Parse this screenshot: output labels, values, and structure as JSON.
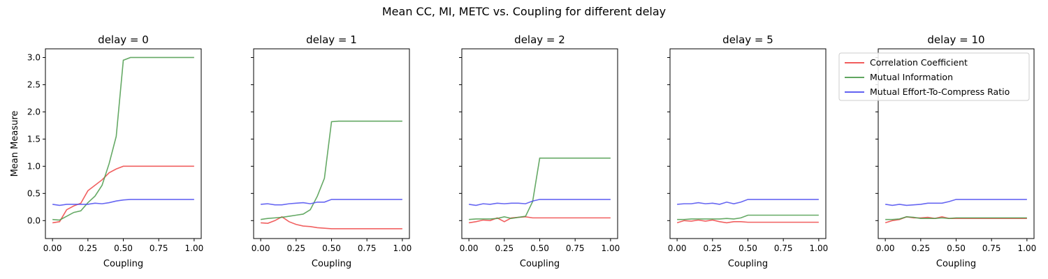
{
  "figure": {
    "title": "Mean CC, MI, METC vs. Coupling for different delay"
  },
  "legend": {
    "placement": "upper-right (last panel)",
    "entries": [
      {
        "label": "Correlation Coefficient",
        "color": "#ef4444"
      },
      {
        "label": "Mutual Information",
        "color": "#4a9a4a"
      },
      {
        "label": "Mutual Effort-To-Compress Ratio",
        "color": "#4b4bf0"
      }
    ]
  },
  "chart_data": [
    {
      "type": "line",
      "title": "delay = 0",
      "xlabel": "Coupling",
      "ylabel": "Mean Measure",
      "xlim": [
        -0.05,
        1.05
      ],
      "ylim": [
        -0.33,
        3.16
      ],
      "x_ticks": [
        "0.00",
        "0.25",
        "0.50",
        "0.75",
        "1.00"
      ],
      "y_ticks": [
        "0.0",
        "0.5",
        "1.0",
        "1.5",
        "2.0",
        "2.5",
        "3.0"
      ],
      "x": [
        0.0,
        0.05,
        0.1,
        0.15,
        0.2,
        0.25,
        0.3,
        0.35,
        0.4,
        0.45,
        0.5,
        0.55,
        0.6,
        0.65,
        0.7,
        0.75,
        0.8,
        0.85,
        0.9,
        0.95,
        1.0
      ],
      "series": [
        {
          "name": "Correlation Coefficient",
          "values": [
            -0.04,
            -0.02,
            0.2,
            0.27,
            0.32,
            0.55,
            0.65,
            0.75,
            0.88,
            0.95,
            1.0,
            1.0,
            1.0,
            1.0,
            1.0,
            1.0,
            1.0,
            1.0,
            1.0,
            1.0,
            1.0
          ]
        },
        {
          "name": "Mutual Information",
          "values": [
            0.02,
            0.01,
            0.08,
            0.15,
            0.18,
            0.33,
            0.45,
            0.65,
            1.05,
            1.55,
            2.95,
            3.0,
            3.0,
            3.0,
            3.0,
            3.0,
            3.0,
            3.0,
            3.0,
            3.0,
            3.0
          ]
        },
        {
          "name": "Mutual Effort-To-Compress Ratio",
          "values": [
            0.3,
            0.28,
            0.3,
            0.3,
            0.3,
            0.3,
            0.32,
            0.31,
            0.33,
            0.36,
            0.38,
            0.39,
            0.39,
            0.39,
            0.39,
            0.39,
            0.39,
            0.39,
            0.39,
            0.39,
            0.39
          ]
        }
      ]
    },
    {
      "type": "line",
      "title": "delay = 1",
      "xlabel": "Coupling",
      "ylabel": "",
      "xlim": [
        -0.05,
        1.05
      ],
      "ylim": [
        -0.33,
        3.16
      ],
      "x_ticks": [
        "0.00",
        "0.25",
        "0.50",
        "0.75",
        "1.00"
      ],
      "y_ticks": [],
      "x": [
        0.0,
        0.05,
        0.1,
        0.15,
        0.2,
        0.25,
        0.3,
        0.35,
        0.4,
        0.45,
        0.5,
        0.55,
        0.6,
        0.65,
        0.7,
        0.75,
        0.8,
        0.85,
        0.9,
        0.95,
        1.0
      ],
      "series": [
        {
          "name": "Correlation Coefficient",
          "values": [
            -0.04,
            -0.05,
            0.0,
            0.07,
            -0.02,
            -0.07,
            -0.1,
            -0.11,
            -0.13,
            -0.14,
            -0.15,
            -0.15,
            -0.15,
            -0.15,
            -0.15,
            -0.15,
            -0.15,
            -0.15,
            -0.15,
            -0.15,
            -0.15
          ]
        },
        {
          "name": "Mutual Information",
          "values": [
            0.02,
            0.04,
            0.05,
            0.06,
            0.08,
            0.1,
            0.12,
            0.2,
            0.45,
            0.78,
            1.82,
            1.83,
            1.83,
            1.83,
            1.83,
            1.83,
            1.83,
            1.83,
            1.83,
            1.83,
            1.83
          ]
        },
        {
          "name": "Mutual Effort-To-Compress Ratio",
          "values": [
            0.3,
            0.31,
            0.29,
            0.29,
            0.31,
            0.32,
            0.33,
            0.31,
            0.34,
            0.34,
            0.39,
            0.39,
            0.39,
            0.39,
            0.39,
            0.39,
            0.39,
            0.39,
            0.39,
            0.39,
            0.39
          ]
        }
      ]
    },
    {
      "type": "line",
      "title": "delay = 2",
      "xlabel": "Coupling",
      "ylabel": "",
      "xlim": [
        -0.05,
        1.05
      ],
      "ylim": [
        -0.33,
        3.16
      ],
      "x_ticks": [
        "0.00",
        "0.25",
        "0.50",
        "0.75",
        "1.00"
      ],
      "y_ticks": [],
      "x": [
        0.0,
        0.05,
        0.1,
        0.15,
        0.2,
        0.25,
        0.3,
        0.35,
        0.4,
        0.45,
        0.5,
        0.55,
        0.6,
        0.65,
        0.7,
        0.75,
        0.8,
        0.85,
        0.9,
        0.95,
        1.0
      ],
      "series": [
        {
          "name": "Correlation Coefficient",
          "values": [
            -0.04,
            -0.02,
            0.01,
            0.0,
            0.05,
            -0.02,
            0.05,
            0.06,
            0.07,
            0.05,
            0.05,
            0.05,
            0.05,
            0.05,
            0.05,
            0.05,
            0.05,
            0.05,
            0.05,
            0.05,
            0.05
          ]
        },
        {
          "name": "Mutual Information",
          "values": [
            0.02,
            0.03,
            0.03,
            0.03,
            0.04,
            0.07,
            0.04,
            0.06,
            0.08,
            0.35,
            1.15,
            1.15,
            1.15,
            1.15,
            1.15,
            1.15,
            1.15,
            1.15,
            1.15,
            1.15,
            1.15
          ]
        },
        {
          "name": "Mutual Effort-To-Compress Ratio",
          "values": [
            0.3,
            0.28,
            0.31,
            0.3,
            0.32,
            0.31,
            0.32,
            0.32,
            0.31,
            0.36,
            0.39,
            0.39,
            0.39,
            0.39,
            0.39,
            0.39,
            0.39,
            0.39,
            0.39,
            0.39,
            0.39
          ]
        }
      ]
    },
    {
      "type": "line",
      "title": "delay = 5",
      "xlabel": "Coupling",
      "ylabel": "",
      "xlim": [
        -0.05,
        1.05
      ],
      "ylim": [
        -0.33,
        3.16
      ],
      "x_ticks": [
        "0.00",
        "0.25",
        "0.50",
        "0.75",
        "1.00"
      ],
      "y_ticks": [],
      "x": [
        0.0,
        0.05,
        0.1,
        0.15,
        0.2,
        0.25,
        0.3,
        0.35,
        0.4,
        0.45,
        0.5,
        0.55,
        0.6,
        0.65,
        0.7,
        0.75,
        0.8,
        0.85,
        0.9,
        0.95,
        1.0
      ],
      "series": [
        {
          "name": "Correlation Coefficient",
          "values": [
            -0.04,
            0.0,
            -0.01,
            0.01,
            -0.01,
            0.01,
            -0.02,
            -0.04,
            -0.02,
            -0.02,
            -0.03,
            -0.03,
            -0.03,
            -0.03,
            -0.03,
            -0.03,
            -0.03,
            -0.03,
            -0.03,
            -0.03,
            -0.03
          ]
        },
        {
          "name": "Mutual Information",
          "values": [
            0.02,
            0.02,
            0.03,
            0.03,
            0.03,
            0.03,
            0.03,
            0.04,
            0.03,
            0.05,
            0.1,
            0.1,
            0.1,
            0.1,
            0.1,
            0.1,
            0.1,
            0.1,
            0.1,
            0.1,
            0.1
          ]
        },
        {
          "name": "Mutual Effort-To-Compress Ratio",
          "values": [
            0.3,
            0.31,
            0.31,
            0.33,
            0.31,
            0.32,
            0.3,
            0.34,
            0.31,
            0.34,
            0.39,
            0.39,
            0.39,
            0.39,
            0.39,
            0.39,
            0.39,
            0.39,
            0.39,
            0.39,
            0.39
          ]
        }
      ]
    },
    {
      "type": "line",
      "title": "delay = 10",
      "xlabel": "Coupling",
      "ylabel": "",
      "xlim": [
        -0.05,
        1.05
      ],
      "ylim": [
        -0.33,
        3.16
      ],
      "x_ticks": [
        "0.00",
        "0.25",
        "0.50",
        "0.75",
        "1.00"
      ],
      "y_ticks": [],
      "x": [
        0.0,
        0.05,
        0.1,
        0.15,
        0.2,
        0.25,
        0.3,
        0.35,
        0.4,
        0.45,
        0.5,
        0.55,
        0.6,
        0.65,
        0.7,
        0.75,
        0.8,
        0.85,
        0.9,
        0.95,
        1.0
      ],
      "series": [
        {
          "name": "Correlation Coefficient",
          "values": [
            -0.04,
            0.0,
            0.02,
            0.07,
            0.05,
            0.05,
            0.06,
            0.04,
            0.07,
            0.04,
            0.04,
            0.04,
            0.04,
            0.04,
            0.04,
            0.04,
            0.04,
            0.04,
            0.04,
            0.04,
            0.04
          ]
        },
        {
          "name": "Mutual Information",
          "values": [
            0.02,
            0.02,
            0.03,
            0.07,
            0.06,
            0.04,
            0.04,
            0.04,
            0.05,
            0.04,
            0.05,
            0.05,
            0.05,
            0.05,
            0.05,
            0.05,
            0.05,
            0.05,
            0.05,
            0.05,
            0.05
          ]
        },
        {
          "name": "Mutual Effort-To-Compress Ratio",
          "values": [
            0.3,
            0.28,
            0.3,
            0.28,
            0.29,
            0.3,
            0.32,
            0.32,
            0.32,
            0.35,
            0.39,
            0.39,
            0.39,
            0.39,
            0.39,
            0.39,
            0.39,
            0.39,
            0.39,
            0.39,
            0.39
          ]
        }
      ]
    }
  ]
}
